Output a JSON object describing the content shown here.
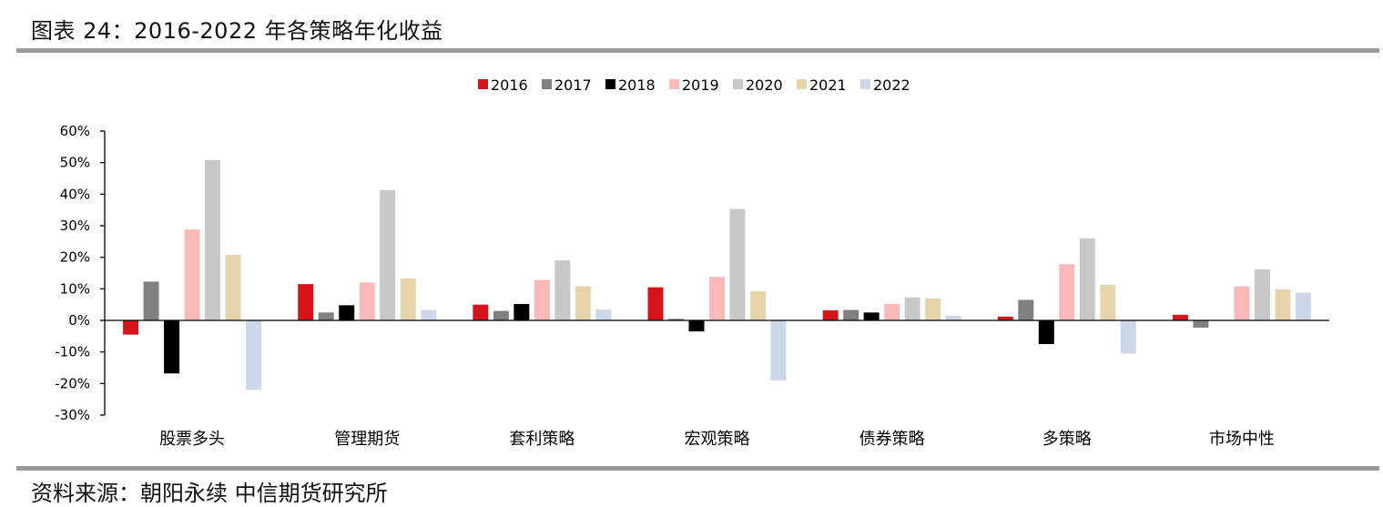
{
  "figure": {
    "title": "图表 24：2016-2022 年各策略年化收益",
    "source": "资料来源：朝阳永续 中信期货研究所"
  },
  "chart_data": {
    "type": "bar",
    "title": "",
    "xlabel": "",
    "ylabel": "",
    "categories": [
      "股票多头",
      "管理期货",
      "套利策略",
      "宏观策略",
      "债券策略",
      "多策略",
      "市场中性"
    ],
    "ylim": [
      -30,
      60
    ],
    "yticks": [
      60,
      50,
      40,
      30,
      20,
      10,
      0,
      -10,
      -20,
      -30
    ],
    "ytick_labels": [
      "60%",
      "50%",
      "40%",
      "30%",
      "20%",
      "10%",
      "0%",
      "-10%",
      "-20%",
      "-30%"
    ],
    "legend_position": "top-center",
    "grid": false,
    "series": [
      {
        "name": "2016",
        "color": "#d7141a",
        "values": [
          -4.5,
          11.5,
          5.0,
          10.5,
          3.2,
          1.2,
          1.8
        ]
      },
      {
        "name": "2017",
        "color": "#808080",
        "values": [
          12.3,
          2.5,
          3.0,
          0.5,
          3.3,
          6.5,
          -2.3
        ]
      },
      {
        "name": "2018",
        "color": "#000000",
        "values": [
          -16.8,
          4.8,
          5.2,
          -3.5,
          2.5,
          -7.5,
          0
        ]
      },
      {
        "name": "2019",
        "color": "#f9b9b9",
        "values": [
          28.8,
          12.0,
          12.8,
          13.8,
          5.2,
          17.8,
          10.8
        ]
      },
      {
        "name": "2020",
        "color": "#c8c8c8",
        "values": [
          50.8,
          41.3,
          19.0,
          35.3,
          7.3,
          26.0,
          16.2
        ]
      },
      {
        "name": "2021",
        "color": "#e6d4aa",
        "values": [
          20.8,
          13.3,
          10.8,
          9.2,
          7.0,
          11.3,
          9.8
        ]
      },
      {
        "name": "2022",
        "color": "#ccd8ea",
        "values": [
          -22.0,
          3.3,
          3.5,
          -19.0,
          1.5,
          -10.5,
          8.8
        ]
      }
    ]
  }
}
